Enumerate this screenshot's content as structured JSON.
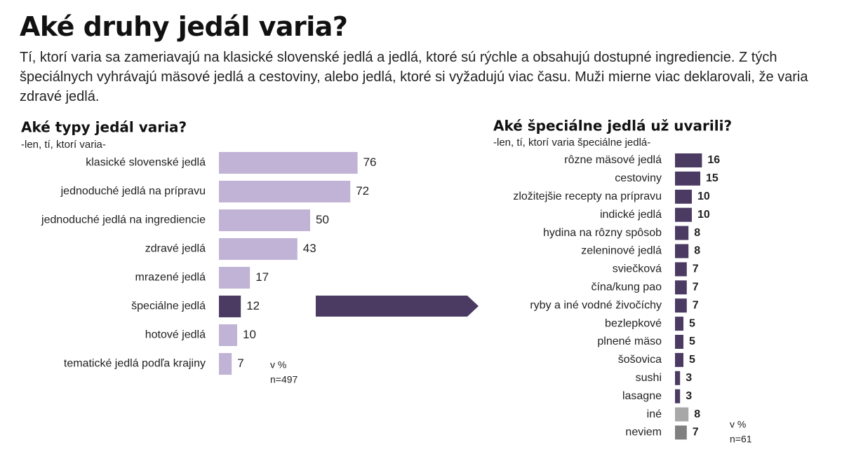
{
  "header": {
    "title": "Aké druhy jedál varia?",
    "description": "Tí, ktorí varia sa zameriavajú na klasické slovenské jedlá a jedlá, ktoré sú rýchle a obsahujú dostupné ingrediencie. Z tých špeciálnych vyhrávajú mäsové jedlá a cestoviny, alebo jedlá, ktoré si vyžadujú viac času. Muži mierne viac deklarovali, že varia zdravé jedlá."
  },
  "chart_data": [
    {
      "type": "bar",
      "orientation": "horizontal",
      "title": "Aké typy jedál varia?",
      "subtitle": "-len, tí, ktorí varia-",
      "categories": [
        "klasické slovenské jedlá",
        "jednoduché jedlá na prípravu",
        "jednoduché jedlá na ingrediencie",
        "zdravé jedlá",
        "mrazené jedlá",
        "špeciálne jedlá",
        "hotové jedlá",
        "tematické jedlá podľa krajiny"
      ],
      "values": [
        76,
        72,
        50,
        43,
        17,
        12,
        10,
        7
      ],
      "colors": [
        "#c0b3d5",
        "#c0b3d5",
        "#c0b3d5",
        "#c0b3d5",
        "#c0b3d5",
        "#4b3b63",
        "#c0b3d5",
        "#c0b3d5"
      ],
      "unit_note": "v %",
      "sample_note": "n=497"
    },
    {
      "type": "bar",
      "orientation": "horizontal",
      "title": "Aké špeciálne jedlá už uvarili?",
      "subtitle": "-len, tí, ktorí varia špeciálne jedlá-",
      "categories": [
        "rôzne mäsové jedlá",
        "cestoviny",
        "zložitejšie recepty na prípravu",
        "indické jedlá",
        "hydina na rôzny spôsob",
        "zeleninové jedlá",
        "sviečková",
        "čína/kung pao",
        "ryby a iné vodné živočíchy",
        "bezlepkové",
        "plnené mäso",
        "šošovica",
        "sushi",
        "lasagne",
        "iné",
        "neviem"
      ],
      "values": [
        16,
        15,
        10,
        10,
        8,
        8,
        7,
        7,
        7,
        5,
        5,
        5,
        3,
        3,
        8,
        7
      ],
      "colors": [
        "#4b3b63",
        "#4b3b63",
        "#4b3b63",
        "#4b3b63",
        "#4b3b63",
        "#4b3b63",
        "#4b3b63",
        "#4b3b63",
        "#4b3b63",
        "#4b3b63",
        "#4b3b63",
        "#4b3b63",
        "#4b3b63",
        "#4b3b63",
        "#a8a8a8",
        "#808080"
      ],
      "unit_note": "v %",
      "sample_note": "n=61"
    }
  ]
}
